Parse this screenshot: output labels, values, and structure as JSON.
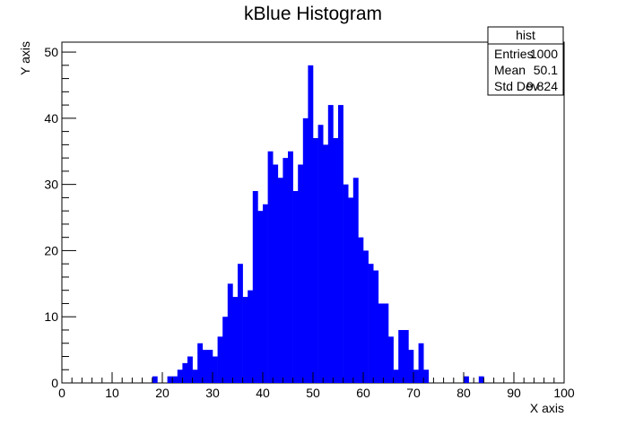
{
  "chart_data": {
    "type": "bar",
    "title": "kBlue Histogram",
    "xlabel": "X axis",
    "ylabel": "Y axis",
    "xlim": [
      0,
      100
    ],
    "ylim": [
      0,
      51.5
    ],
    "bin_width": 1,
    "bar_color": "#0000ff",
    "x_ticks": [
      0,
      10,
      20,
      30,
      40,
      50,
      60,
      70,
      80,
      90,
      100
    ],
    "y_ticks": [
      0,
      10,
      20,
      30,
      40,
      50
    ],
    "bins_start": 18,
    "values": [
      1,
      0,
      0,
      1,
      1,
      2,
      3,
      4,
      2,
      6,
      5,
      5,
      4,
      7,
      10,
      15,
      13,
      18,
      13,
      14,
      29,
      26,
      27,
      35,
      33,
      31,
      34,
      35,
      29,
      33,
      40,
      48,
      37,
      39,
      36,
      42,
      37,
      42,
      30,
      28,
      31,
      22,
      20,
      18,
      17,
      12,
      12,
      7,
      2,
      8,
      8,
      5,
      2,
      6,
      2,
      0,
      0,
      0,
      0,
      0,
      0,
      0,
      1,
      0,
      0,
      1
    ],
    "legend": "top-right",
    "stats": {
      "title": "hist",
      "rows": [
        {
          "label": "Entries",
          "value": "1000"
        },
        {
          "label": "Mean",
          "value": "50.1"
        },
        {
          "label": "Std Dev",
          "value": "9.824"
        }
      ]
    }
  }
}
